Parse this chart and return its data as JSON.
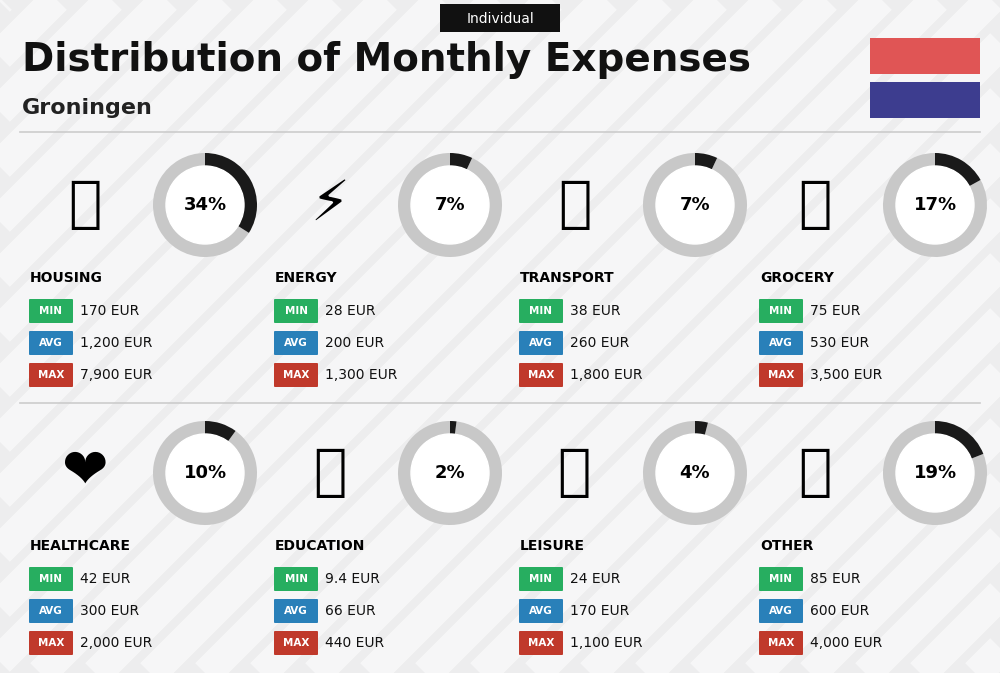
{
  "title": "Distribution of Monthly Expenses",
  "subtitle": "Groningen",
  "tag": "Individual",
  "background_color": "#ededee",
  "stripe_color": "#ffffff",
  "categories": [
    {
      "name": "HOUSING",
      "pct": 34,
      "min": "170 EUR",
      "avg": "1,200 EUR",
      "max": "7,900 EUR",
      "row": 0,
      "col": 0,
      "icon": "🏗"
    },
    {
      "name": "ENERGY",
      "pct": 7,
      "min": "28 EUR",
      "avg": "200 EUR",
      "max": "1,300 EUR",
      "row": 0,
      "col": 1,
      "icon": "⚡"
    },
    {
      "name": "TRANSPORT",
      "pct": 7,
      "min": "38 EUR",
      "avg": "260 EUR",
      "max": "1,800 EUR",
      "row": 0,
      "col": 2,
      "icon": "🚌"
    },
    {
      "name": "GROCERY",
      "pct": 17,
      "min": "75 EUR",
      "avg": "530 EUR",
      "max": "3,500 EUR",
      "row": 0,
      "col": 3,
      "icon": "🛒"
    },
    {
      "name": "HEALTHCARE",
      "pct": 10,
      "min": "42 EUR",
      "avg": "300 EUR",
      "max": "2,000 EUR",
      "row": 1,
      "col": 0,
      "icon": "❤️"
    },
    {
      "name": "EDUCATION",
      "pct": 2,
      "min": "9.4 EUR",
      "avg": "66 EUR",
      "max": "440 EUR",
      "row": 1,
      "col": 1,
      "icon": "🎓"
    },
    {
      "name": "LEISURE",
      "pct": 4,
      "min": "24 EUR",
      "avg": "170 EUR",
      "max": "1,100 EUR",
      "row": 1,
      "col": 2,
      "icon": "🛍️"
    },
    {
      "name": "OTHER",
      "pct": 19,
      "min": "85 EUR",
      "avg": "600 EUR",
      "max": "4,000 EUR",
      "row": 1,
      "col": 3,
      "icon": "👛"
    }
  ],
  "color_min": "#27ae60",
  "color_avg": "#2980b9",
  "color_max": "#c0392b",
  "donut_filled": "#1a1a1a",
  "donut_empty": "#c8c8c8",
  "flag_red": "#e05555",
  "flag_blue": "#3d3d8f",
  "title_color": "#111111",
  "subtitle_color": "#222222",
  "tag_bg": "#111111",
  "tag_text": "#ffffff",
  "divider_color": "#cccccc",
  "value_text_color": "#111111"
}
